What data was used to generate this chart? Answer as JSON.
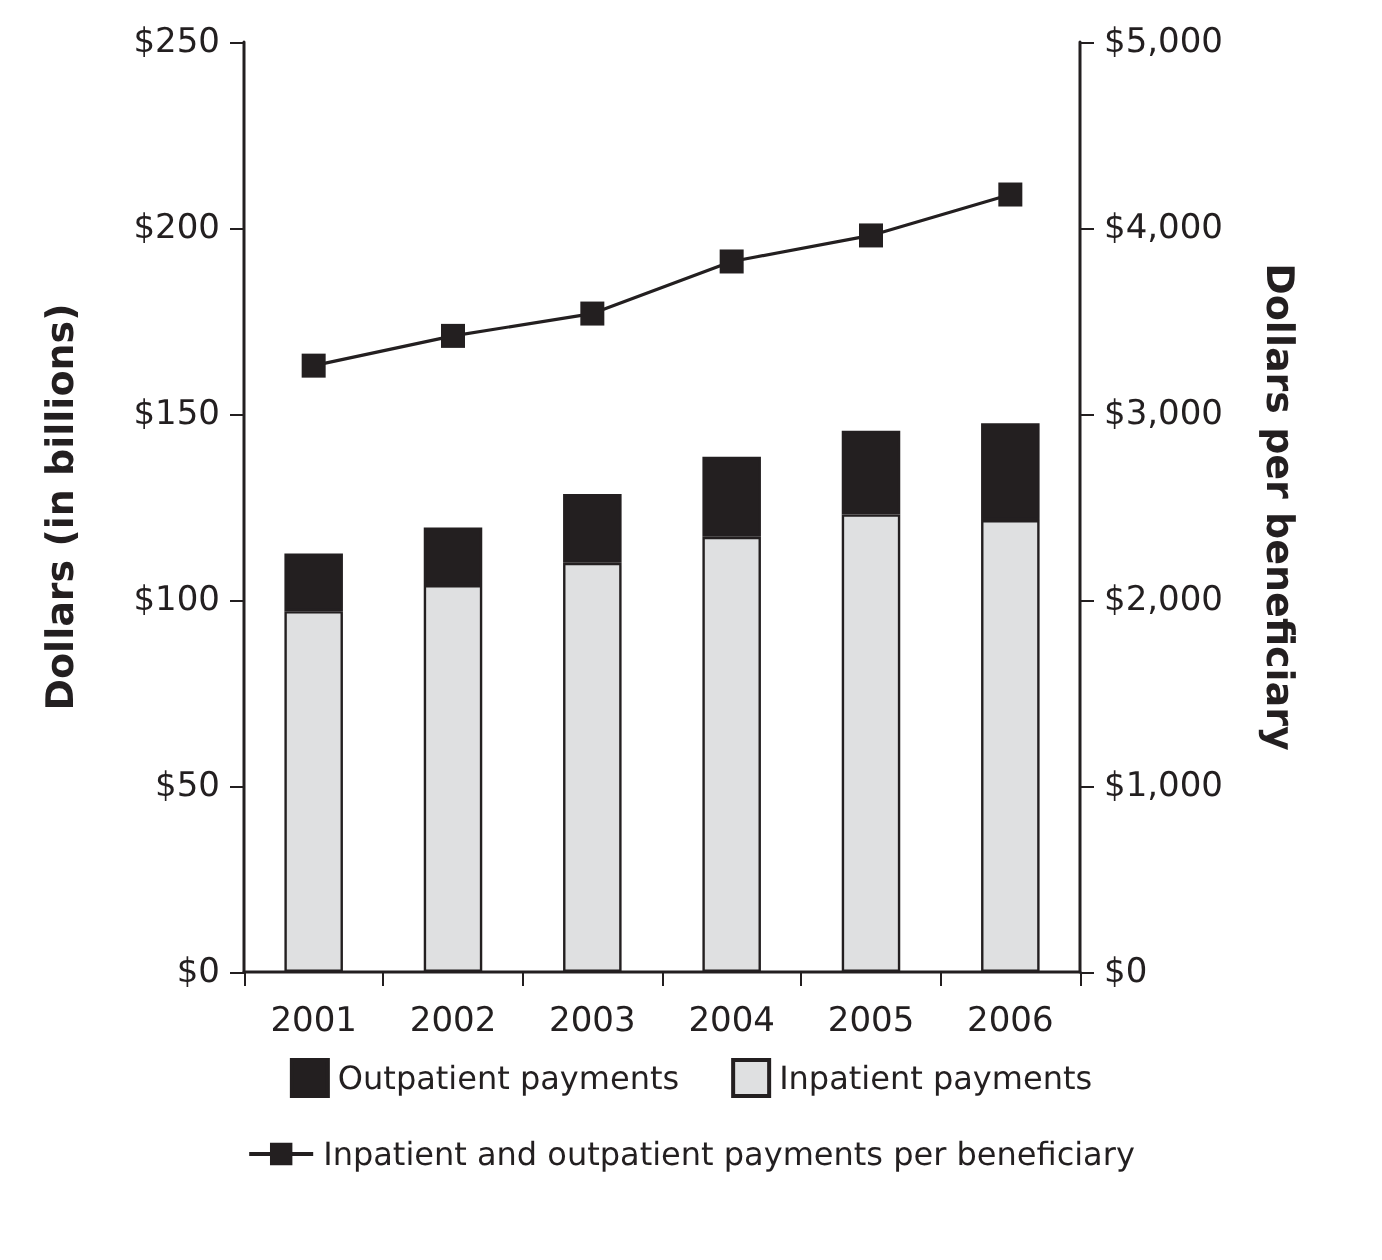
{
  "chart_data": {
    "type": "bar",
    "stacked": true,
    "categories": [
      "2001",
      "2002",
      "2003",
      "2004",
      "2005",
      "2006"
    ],
    "ylabel": "Dollars (in billions)",
    "y2label": "Dollars per beneficiary",
    "series": [
      {
        "name": "Inpatient payments",
        "color": "#dfe0e1",
        "values": [
          97,
          104,
          110,
          117,
          123,
          121.5
        ]
      },
      {
        "name": "Outpatient payments",
        "color": "#231f20",
        "values": [
          15.5,
          15.5,
          18.5,
          21.5,
          22.5,
          26
        ]
      },
      {
        "name": "Inpatient and outpatient payments per beneficiary",
        "type": "line",
        "axis": "y2",
        "color": "#231f20",
        "values": [
          3260,
          3420,
          3540,
          3820,
          3960,
          4180
        ]
      }
    ],
    "ylim": [
      0,
      250
    ],
    "yticks": [
      {
        "value": 0,
        "label": "$0"
      },
      {
        "value": 50,
        "label": "$50"
      },
      {
        "value": 100,
        "label": "$100"
      },
      {
        "value": 150,
        "label": "$150"
      },
      {
        "value": 200,
        "label": "$200"
      },
      {
        "value": 250,
        "label": "$250"
      }
    ],
    "y2lim": [
      0,
      5000
    ],
    "y2ticks": [
      {
        "value": 0,
        "label": "$0"
      },
      {
        "value": 1000,
        "label": "$1,000"
      },
      {
        "value": 2000,
        "label": "$2,000"
      },
      {
        "value": 3000,
        "label": "$3,000"
      },
      {
        "value": 4000,
        "label": "$4,000"
      },
      {
        "value": 5000,
        "label": "$5,000"
      }
    ],
    "legend": "bottom",
    "grid": false,
    "marker": "square",
    "line_style": "solid"
  }
}
